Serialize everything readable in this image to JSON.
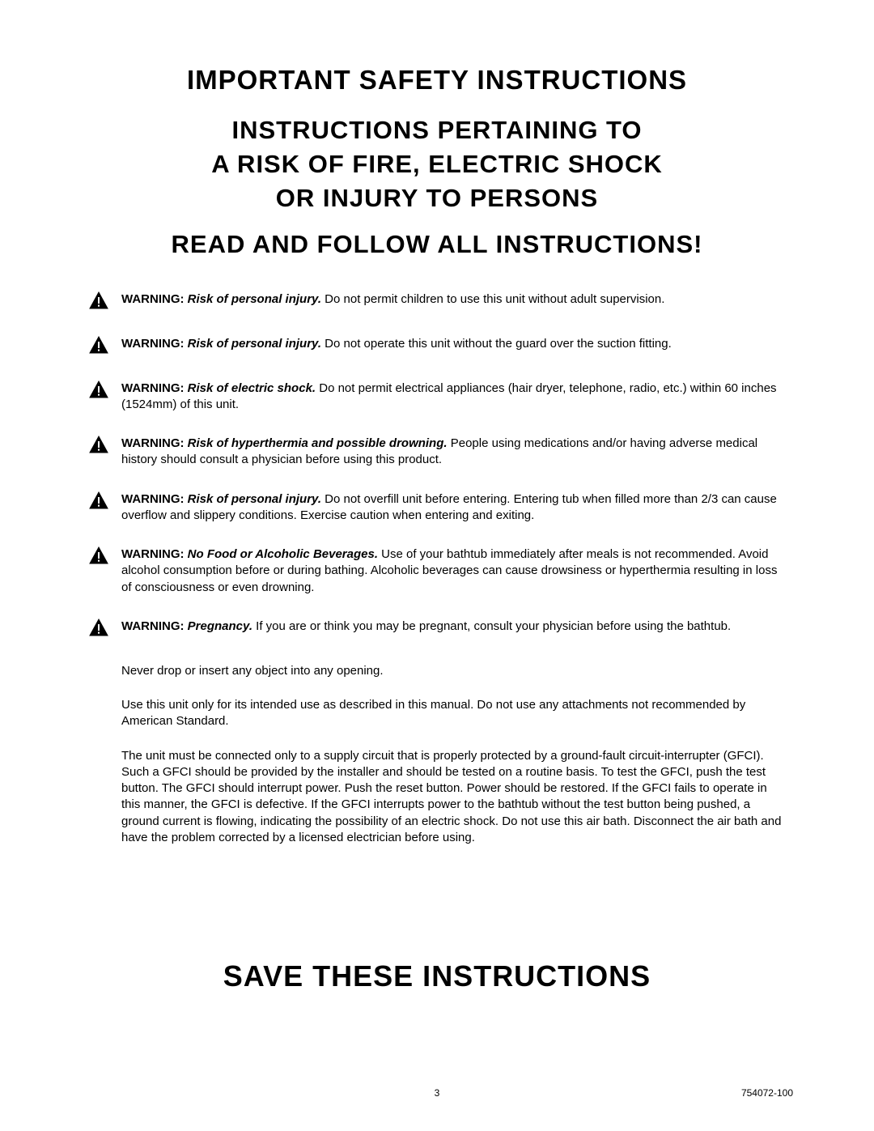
{
  "headings": {
    "h1": "IMPORTANT SAFETY INSTRUCTIONS",
    "h2": "INSTRUCTIONS PERTAINING TO\nA RISK OF FIRE, ELECTRIC SHOCK\nOR INJURY TO PERSONS",
    "h3": "READ AND FOLLOW ALL INSTRUCTIONS!"
  },
  "warning_label": "WARNING:",
  "warnings": [
    {
      "risk": "Risk of personal injury.",
      "text": " Do not permit children to use this unit without adult supervision."
    },
    {
      "risk": "Risk of personal injury.",
      "text": " Do not operate this unit without the guard over the suction fitting."
    },
    {
      "risk": "Risk of electric shock.",
      "text": " Do not permit electrical appliances (hair dryer, telephone, radio, etc.) within 60 inches (1524mm) of this unit."
    },
    {
      "risk": "Risk of hyperthermia and possible drowning.",
      "text": " People using medications and/or having adverse medical history should consult a physician before using this product."
    },
    {
      "risk": "Risk of personal injury.",
      "text": " Do not overfill unit before entering. Entering tub when filled more than 2/3 can cause overflow and slippery conditions. Exercise caution when entering and exiting."
    },
    {
      "risk": "No Food or Alcoholic Beverages.",
      "text": " Use of your bathtub immediately after meals is not recommended.  Avoid alcohol consumption before or during bathing. Alcoholic beverages can cause drowsiness or hyperthermia resulting in loss of consciousness or even drowning."
    },
    {
      "risk": "Pregnancy.",
      "text": " If you are or think you may be pregnant, consult your physician before using the bathtub."
    }
  ],
  "plain": [
    "Never drop or insert any object into any opening.",
    "Use this unit only for its intended use as described in this manual. Do not use any attachments not recommended by American Standard.",
    "The unit must be connected only to a supply circuit that is properly protected by a ground-fault circuit-interrupter (GFCI). Such a GFCI should be provided by the installer and should be tested on a routine basis. To test the GFCI, push the test button. The GFCI should interrupt power. Push the reset button. Power should be restored. If the GFCI fails to operate in this manner, the GFCI is defective. If the GFCI interrupts power to the bathtub without the test button being pushed, a ground current is flowing, indicating the possibility of an electric shock. Do not use this air bath. Disconnect the air bath and have the problem corrected by a licensed electrician before using."
  ],
  "save": "SAVE THESE INSTRUCTIONS",
  "footer": {
    "page": "3",
    "doc": "754072-100"
  },
  "icon": {
    "stroke": "#000000",
    "fill": "#000000",
    "bang_fill": "#ffffff"
  }
}
